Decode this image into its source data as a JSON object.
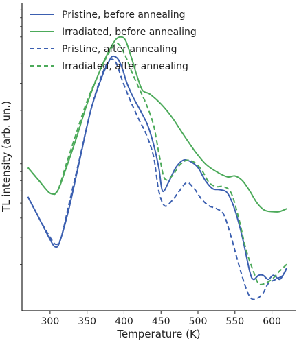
{
  "chart_data": {
    "type": "line",
    "title": "",
    "xlabel": "Temperature (K)",
    "ylabel": "TL intensity (arb. un.)",
    "x_ticks": [
      300,
      350,
      400,
      450,
      500,
      550,
      600
    ],
    "xlim": [
      262,
      632
    ],
    "y_scale": "log",
    "y_ticks_labeled": false,
    "grid": false,
    "legend_position": "top-left",
    "series": [
      {
        "name": "Pristine, before annealing",
        "color": "#3b5fb0",
        "style": "solid",
        "x": [
          270,
          285,
          300,
          307,
          313,
          325,
          340,
          355,
          370,
          380,
          385,
          392,
          398,
          404,
          412,
          422,
          432,
          440,
          447,
          452,
          460,
          470,
          480,
          490,
          500,
          510,
          520,
          530,
          540,
          550,
          560,
          570,
          575,
          582,
          588,
          595,
          602,
          610,
          615,
          620
        ],
        "y": [
          0.055,
          0.04,
          0.029,
          0.026,
          0.028,
          0.045,
          0.095,
          0.2,
          0.33,
          0.42,
          0.45,
          0.43,
          0.37,
          0.3,
          0.245,
          0.2,
          0.16,
          0.12,
          0.085,
          0.06,
          0.068,
          0.085,
          0.095,
          0.093,
          0.085,
          0.07,
          0.062,
          0.061,
          0.058,
          0.045,
          0.03,
          0.018,
          0.016,
          0.017,
          0.017,
          0.016,
          0.017,
          0.016,
          0.017,
          0.019
        ]
      },
      {
        "name": "Irradiated, before annealing",
        "color": "#4caa5a",
        "style": "solid",
        "x": [
          270,
          285,
          300,
          310,
          320,
          335,
          350,
          365,
          378,
          388,
          395,
          402,
          410,
          418,
          425,
          435,
          450,
          465,
          480,
          495,
          510,
          525,
          540,
          550,
          560,
          570,
          580,
          590,
          600,
          610,
          620
        ],
        "y": [
          0.085,
          0.07,
          0.058,
          0.06,
          0.08,
          0.13,
          0.22,
          0.34,
          0.47,
          0.57,
          0.6,
          0.57,
          0.44,
          0.33,
          0.27,
          0.255,
          0.22,
          0.18,
          0.14,
          0.11,
          0.09,
          0.08,
          0.074,
          0.075,
          0.07,
          0.06,
          0.05,
          0.045,
          0.044,
          0.044,
          0.046
        ]
      },
      {
        "name": "Pristine, after annealing",
        "color": "#3b5fb0",
        "style": "dashed",
        "x": [
          270,
          285,
          300,
          308,
          315,
          325,
          340,
          355,
          368,
          378,
          384,
          390,
          398,
          408,
          420,
          430,
          440,
          447,
          455,
          465,
          475,
          485,
          495,
          505,
          515,
          525,
          535,
          545,
          555,
          565,
          572,
          580,
          588,
          595,
          605,
          615,
          620
        ],
        "y": [
          0.055,
          0.04,
          0.03,
          0.027,
          0.03,
          0.048,
          0.098,
          0.2,
          0.32,
          0.41,
          0.43,
          0.4,
          0.31,
          0.235,
          0.175,
          0.14,
          0.1,
          0.06,
          0.048,
          0.052,
          0.06,
          0.068,
          0.062,
          0.053,
          0.048,
          0.046,
          0.042,
          0.03,
          0.02,
          0.014,
          0.012,
          0.012,
          0.013,
          0.015,
          0.016,
          0.017,
          0.019
        ]
      },
      {
        "name": "Irradiated, after annealing",
        "color": "#4caa5a",
        "style": "dashed",
        "x": [
          270,
          285,
          300,
          310,
          322,
          335,
          350,
          365,
          378,
          388,
          394,
          402,
          410,
          420,
          430,
          440,
          448,
          455,
          465,
          475,
          485,
          495,
          505,
          515,
          525,
          535,
          545,
          555,
          565,
          575,
          582,
          590,
          600,
          610,
          620
        ],
        "y": [
          0.085,
          0.07,
          0.058,
          0.06,
          0.09,
          0.14,
          0.23,
          0.34,
          0.46,
          0.54,
          0.53,
          0.45,
          0.36,
          0.28,
          0.22,
          0.16,
          0.1,
          0.072,
          0.075,
          0.088,
          0.095,
          0.092,
          0.082,
          0.068,
          0.064,
          0.064,
          0.058,
          0.04,
          0.025,
          0.018,
          0.015,
          0.015,
          0.016,
          0.018,
          0.02
        ]
      }
    ]
  }
}
